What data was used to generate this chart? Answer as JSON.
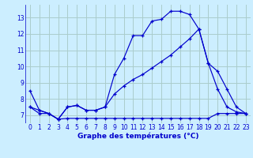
{
  "xlabel": "Graphe des températures (°C)",
  "bg_color": "#cceeff",
  "grid_color": "#aacccc",
  "line_color": "#0000cc",
  "xlim": [
    -0.5,
    23.5
  ],
  "ylim": [
    6.5,
    13.8
  ],
  "yticks": [
    7,
    8,
    9,
    10,
    11,
    12,
    13
  ],
  "xticks": [
    0,
    1,
    2,
    3,
    4,
    5,
    6,
    7,
    8,
    9,
    10,
    11,
    12,
    13,
    14,
    15,
    16,
    17,
    18,
    19,
    20,
    21,
    22,
    23
  ],
  "series1_x": [
    0,
    1,
    2,
    3,
    4,
    5,
    6,
    7,
    8,
    9,
    10,
    11,
    12,
    13,
    14,
    15,
    16,
    17,
    18,
    19,
    20,
    21,
    22,
    23
  ],
  "series1_y": [
    8.5,
    7.3,
    7.1,
    6.75,
    7.5,
    7.6,
    7.3,
    7.3,
    7.5,
    9.5,
    10.5,
    11.9,
    11.9,
    12.8,
    12.9,
    13.4,
    13.4,
    13.2,
    12.3,
    10.2,
    8.6,
    7.5,
    7.2,
    7.1
  ],
  "series2_x": [
    0,
    1,
    2,
    3,
    4,
    5,
    6,
    7,
    8,
    9,
    10,
    11,
    12,
    13,
    14,
    15,
    16,
    17,
    18,
    19,
    20,
    21,
    22,
    23
  ],
  "series2_y": [
    7.5,
    7.3,
    7.1,
    6.75,
    7.5,
    7.6,
    7.3,
    7.3,
    7.5,
    8.3,
    8.8,
    9.2,
    9.5,
    9.9,
    10.3,
    10.7,
    11.2,
    11.7,
    12.3,
    10.2,
    9.7,
    8.6,
    7.5,
    7.1
  ],
  "series3_x": [
    0,
    1,
    2,
    3,
    4,
    5,
    6,
    7,
    8,
    9,
    10,
    11,
    12,
    13,
    14,
    15,
    16,
    17,
    18,
    19,
    20,
    21,
    22,
    23
  ],
  "series3_y": [
    7.5,
    7.1,
    7.1,
    6.75,
    6.8,
    6.8,
    6.8,
    6.8,
    6.8,
    6.8,
    6.8,
    6.8,
    6.8,
    6.8,
    6.8,
    6.8,
    6.8,
    6.8,
    6.8,
    6.8,
    7.1,
    7.1,
    7.1,
    7.1
  ]
}
